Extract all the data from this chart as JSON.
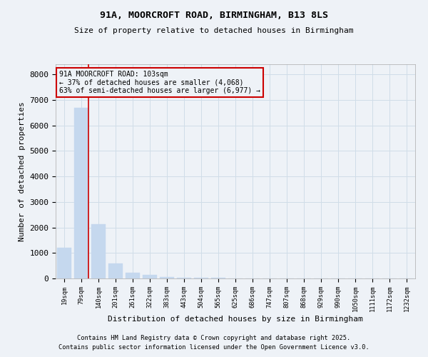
{
  "title1": "91A, MOORCROFT ROAD, BIRMINGHAM, B13 8LS",
  "title2": "Size of property relative to detached houses in Birmingham",
  "xlabel": "Distribution of detached houses by size in Birmingham",
  "ylabel": "Number of detached properties",
  "bar_color": "#c5d8ee",
  "bar_edge_color": "#c5d8ee",
  "grid_color": "#d0dde8",
  "annotation_line_color": "#cc0000",
  "annotation_box_edge_color": "#cc0000",
  "annotation_text": "91A MOORCROFT ROAD: 103sqm\n← 37% of detached houses are smaller (4,068)\n63% of semi-detached houses are larger (6,977) →",
  "property_bin_index": 1,
  "categories": [
    "19sqm",
    "79sqm",
    "140sqm",
    "201sqm",
    "261sqm",
    "322sqm",
    "383sqm",
    "443sqm",
    "504sqm",
    "565sqm",
    "625sqm",
    "686sqm",
    "747sqm",
    "807sqm",
    "868sqm",
    "929sqm",
    "990sqm",
    "1050sqm",
    "1111sqm",
    "1172sqm",
    "1232sqm"
  ],
  "values": [
    1200,
    6680,
    2120,
    590,
    230,
    130,
    70,
    40,
    25,
    15,
    10,
    8,
    6,
    5,
    4,
    3,
    3,
    2,
    2,
    1,
    1
  ],
  "ylim": [
    0,
    8400
  ],
  "yticks": [
    0,
    1000,
    2000,
    3000,
    4000,
    5000,
    6000,
    7000,
    8000
  ],
  "footnote1": "Contains HM Land Registry data © Crown copyright and database right 2025.",
  "footnote2": "Contains public sector information licensed under the Open Government Licence v3.0.",
  "background_color": "#eef2f7"
}
